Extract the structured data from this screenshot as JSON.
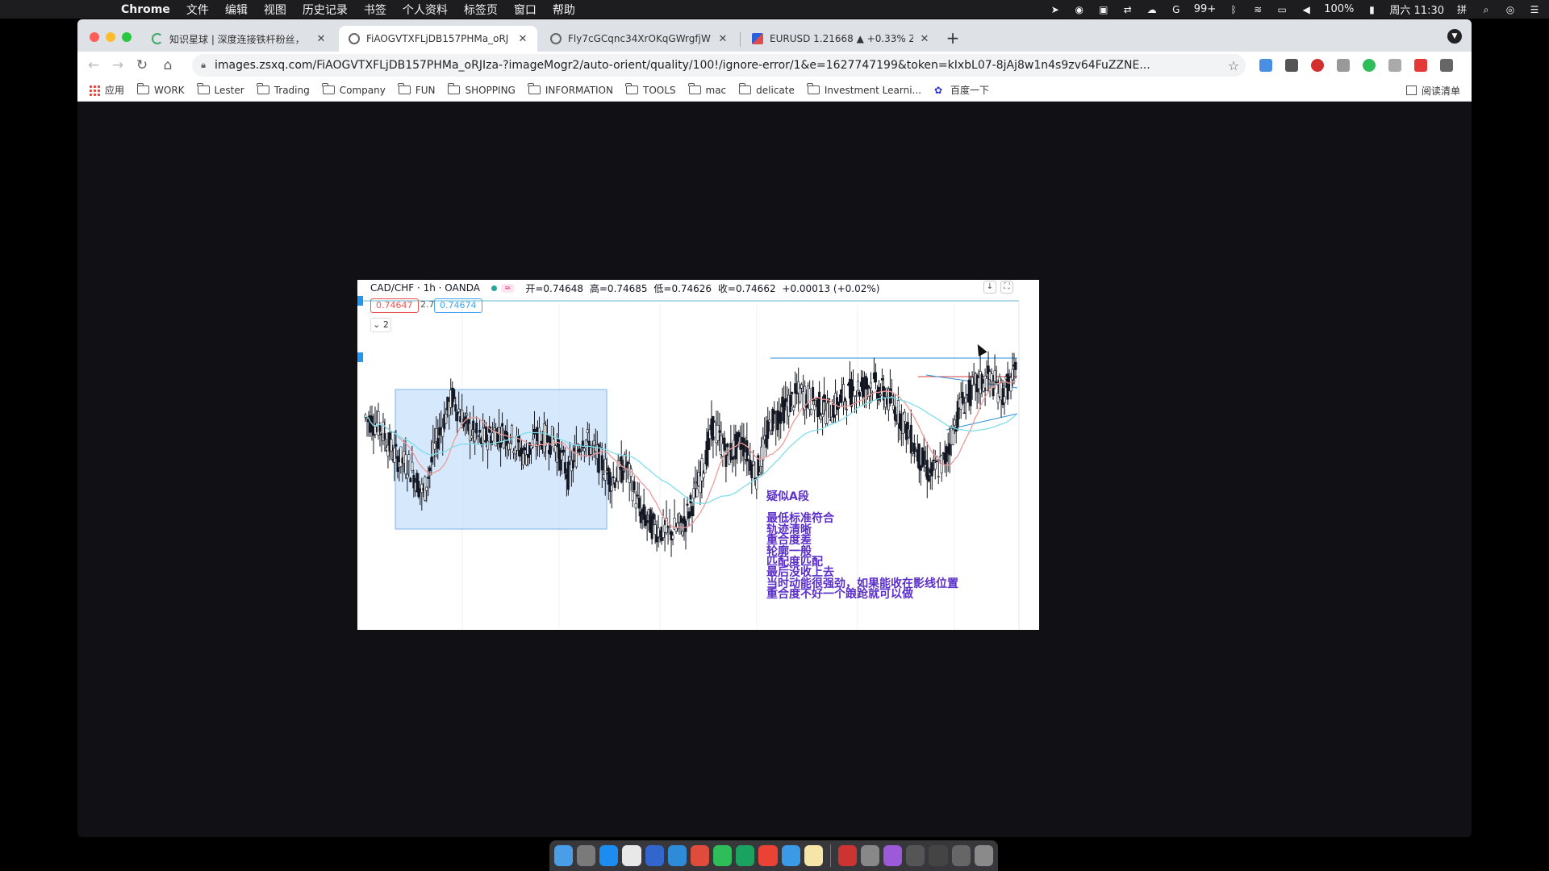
{
  "menubar": {
    "items": [
      "Chrome",
      "文件",
      "编辑",
      "视图",
      "历史记录",
      "书签",
      "个人资料",
      "标签页",
      "窗口",
      "帮助"
    ],
    "status": {
      "badge": "99+",
      "battery": "100%",
      "clock": "周六 11:30"
    }
  },
  "tabs": [
    {
      "title": "知识星球 | 深度连接铁杆粉丝，",
      "icon": "loading-icon",
      "active": false
    },
    {
      "title": "FiAOGVTXFLjDB157PHMa_oRJ",
      "icon": "globe-icon",
      "active": true
    },
    {
      "title": "Fly7cGCqnc34XrOKqGWrgfjW",
      "icon": "globe-icon",
      "active": false
    },
    {
      "title": "EURUSD 1.21668 ▲ +0.33% Z",
      "icon": "fx-icon",
      "active": false
    }
  ],
  "address": {
    "url": "images.zsxq.com/FiAOGVTXFLjDB157PHMa_oRJIza-?imageMogr2/auto-orient/quality/100!/ignore-error/1&e=1627747199&token=kIxbL07-8jAj8w1n4s9zv64FuZZNE..."
  },
  "bookmarks": [
    "应用",
    "WORK",
    "Lester",
    "Trading",
    "Company",
    "FUN",
    "SHOPPING",
    "INFORMATION",
    "TOOLS",
    "mac",
    "delicate",
    "Investment Learni...",
    "百度一下"
  ],
  "reading_list": "阅读清单",
  "chart": {
    "symbol": "CAD/CHF · 1h · OANDA",
    "ohlc": [
      "开=0.74648",
      "高=0.74685",
      "低=0.74626",
      "收=0.74662",
      "+0.00013 (+0.02%)"
    ],
    "sell_price": "0.74647",
    "spread": "2.7",
    "buy_price": "0.74674",
    "indicator_count": "2",
    "colors": {
      "up": "#131722",
      "ma_fast": "#ef9a9a",
      "ma_slow": "#80deea",
      "box_fill": "#cfe4fb",
      "box_border": "#64a6e8",
      "annotation": "#5b2fc9"
    },
    "annotation_title": "疑似A段",
    "annotation_lines": [
      "最低标准符合",
      "轨迹清晰",
      "重合度差",
      "轮廓一般",
      "匹配度匹配",
      "最后没收上去",
      "当时动能很强劲，如果能收在影线位置",
      "重合度不好一个踉跄就可以做"
    ]
  },
  "chart_data": {
    "type": "line",
    "title": "CAD/CHF · 1h · OANDA",
    "series": [
      {
        "name": "CAD/CHF",
        "values": [
          0.746,
          0.7458,
          0.7452,
          0.745,
          0.7444,
          0.7456,
          0.7464,
          0.7458,
          0.7455,
          0.7457,
          0.7456,
          0.7452,
          0.7456,
          0.7455,
          0.7448,
          0.7456,
          0.7452,
          0.7447,
          0.745,
          0.744,
          0.7437,
          0.7436,
          0.7438,
          0.7446,
          0.7458,
          0.7452,
          0.7455,
          0.7448,
          0.7459,
          0.7462,
          0.7465,
          0.7463,
          0.7461,
          0.7464,
          0.7466,
          0.7467,
          0.7464,
          0.746,
          0.7453,
          0.7448,
          0.7451,
          0.7462,
          0.7466,
          0.7468,
          0.7465,
          0.7469
        ]
      }
    ]
  },
  "dock_count": 18
}
